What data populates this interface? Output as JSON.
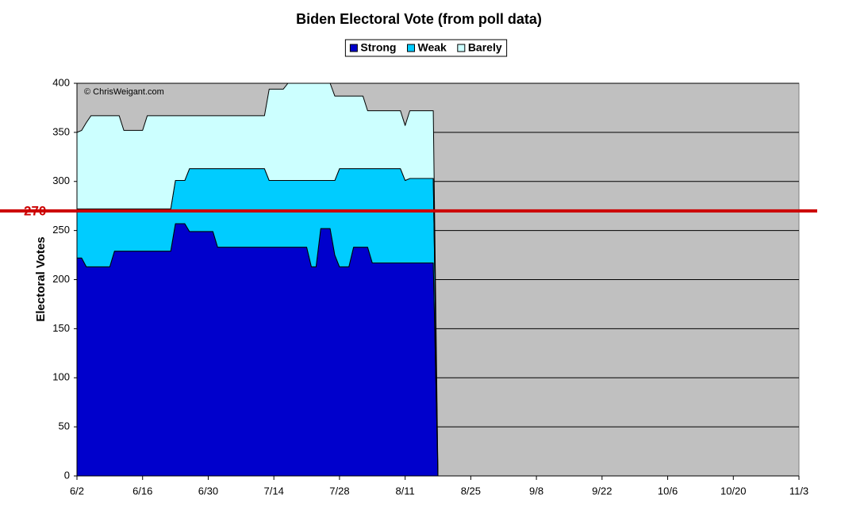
{
  "chart_data": {
    "type": "stacked-area",
    "title": "Biden Electoral Vote (from poll data)",
    "ylabel": "Electoral Votes",
    "credit": "© ChrisWeigant.com",
    "threshold": 270,
    "threshold_color": "#cc0000",
    "x": [
      "6/2",
      "6/3",
      "6/4",
      "6/5",
      "6/9",
      "6/10",
      "6/11",
      "6/12",
      "6/16",
      "6/17",
      "6/22",
      "6/23",
      "6/25",
      "6/26",
      "7/1",
      "7/2",
      "7/12",
      "7/13",
      "7/16",
      "7/17",
      "7/21",
      "7/22",
      "7/23",
      "7/24",
      "7/26",
      "7/27",
      "7/28",
      "7/30",
      "7/31",
      "8/2",
      "8/3",
      "8/4",
      "8/10",
      "8/11",
      "8/12",
      "8/17",
      "8/18"
    ],
    "series": [
      {
        "name": "Strong",
        "color": "#0000cc",
        "values": [
          222,
          222,
          213,
          213,
          213,
          229,
          229,
          229,
          229,
          229,
          229,
          257,
          257,
          249,
          249,
          233,
          233,
          233,
          233,
          233,
          233,
          213,
          213,
          252,
          252,
          225,
          213,
          213,
          233,
          233,
          233,
          217,
          217,
          217,
          217,
          217,
          0
        ]
      },
      {
        "name": "Weak",
        "color": "#00ccff",
        "values": [
          50,
          50,
          59,
          59,
          59,
          43,
          43,
          43,
          43,
          43,
          43,
          44,
          44,
          64,
          64,
          80,
          80,
          68,
          68,
          68,
          68,
          88,
          88,
          49,
          49,
          76,
          100,
          100,
          80,
          80,
          80,
          96,
          96,
          84,
          86,
          86,
          0
        ]
      },
      {
        "name": "Barely",
        "color": "#ccffff",
        "values": [
          78,
          80,
          88,
          95,
          95,
          95,
          95,
          80,
          80,
          95,
          95,
          66,
          66,
          54,
          54,
          54,
          54,
          93,
          93,
          99,
          99,
          99,
          99,
          99,
          99,
          86,
          74,
          74,
          74,
          74,
          59,
          59,
          59,
          56,
          69,
          69,
          0
        ]
      }
    ],
    "xlim": [
      "6/2",
      "11/3"
    ],
    "xticks": [
      "6/2",
      "6/16",
      "6/30",
      "7/14",
      "7/28",
      "8/11",
      "8/25",
      "9/8",
      "9/22",
      "10/6",
      "10/20",
      "11/3"
    ],
    "ylim": [
      0,
      400
    ],
    "yticks": [
      0,
      50,
      100,
      150,
      200,
      250,
      300,
      350,
      400
    ],
    "grid": true,
    "plot_background": "#c0c0c0"
  }
}
